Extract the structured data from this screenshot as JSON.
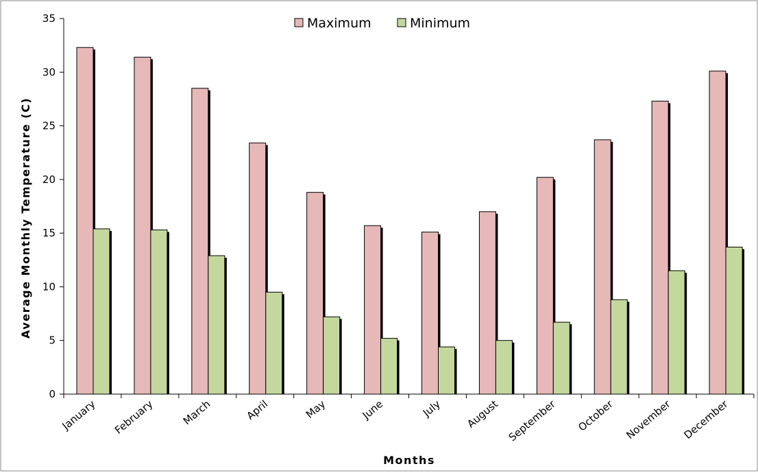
{
  "chart_data": {
    "type": "bar",
    "categories": [
      "January",
      "February",
      "March",
      "April",
      "May",
      "June",
      "July",
      "August",
      "September",
      "October",
      "November",
      "December"
    ],
    "series": [
      {
        "name": "Maximum",
        "color": "#e6b8b8",
        "values": [
          32.3,
          31.4,
          28.5,
          23.4,
          18.8,
          15.7,
          15.1,
          17.0,
          20.2,
          23.7,
          27.3,
          30.1
        ]
      },
      {
        "name": "Minimum",
        "color": "#c4d89e",
        "values": [
          15.4,
          15.3,
          12.9,
          9.5,
          7.2,
          5.2,
          4.4,
          5.0,
          6.7,
          8.8,
          11.5,
          13.7
        ]
      }
    ],
    "xlabel": "Months",
    "ylabel": "Average Monthly Temperature (C)",
    "ylim": [
      0,
      35
    ],
    "yticks": [
      0,
      5,
      10,
      15,
      20,
      25,
      30,
      35
    ],
    "grid": false,
    "legend": "top-center",
    "shadow_color": "#000000"
  }
}
